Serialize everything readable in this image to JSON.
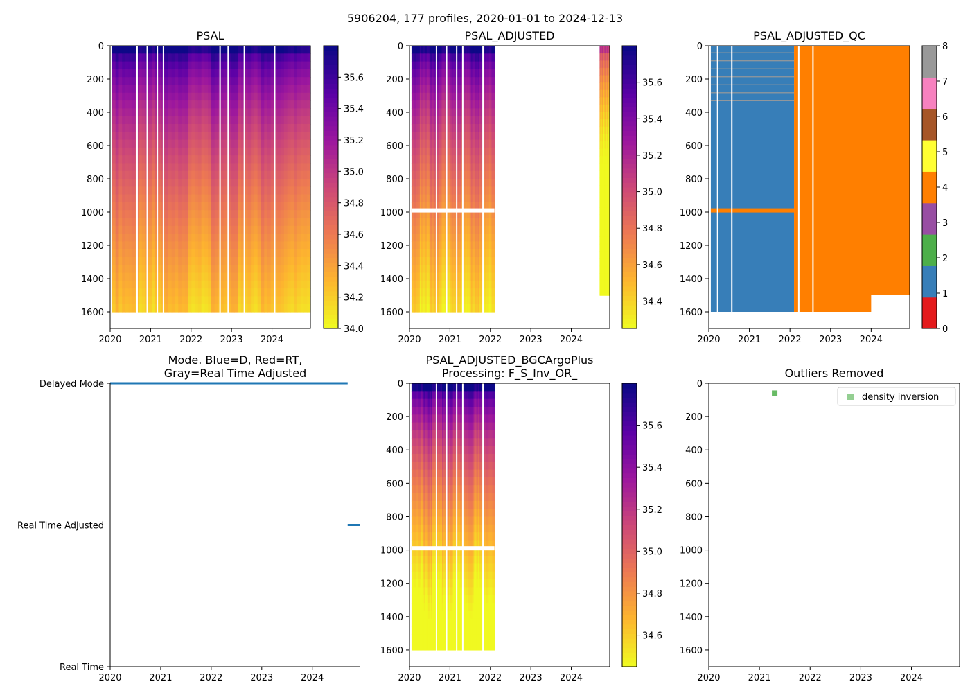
{
  "suptitle": "5906204, 177 profiles, 2020-01-01 to 2024-12-13",
  "colors": {
    "qc": [
      "#e41a1c",
      "#377eb8",
      "#4daf4a",
      "#984ea3",
      "#ff7f00",
      "#ffff33",
      "#a65628",
      "#f781bf",
      "#999999"
    ],
    "plasma": [
      "#f0f921",
      "#fdb42f",
      "#ed7953",
      "#cc4778",
      "#9c179e",
      "#5c01a6",
      "#0d0887"
    ],
    "mode_line": "#1f77b4",
    "outlier": "#4daf4a"
  },
  "chart_data": [
    {
      "id": "psal",
      "type": "heatmap",
      "title": "PSAL",
      "xlim": [
        2020,
        2024.95
      ],
      "ylim": [
        1700,
        0
      ],
      "x_ticks": [
        "2020",
        "2021",
        "2022",
        "2023",
        "2024"
      ],
      "y_ticks": [
        "0",
        "200",
        "400",
        "600",
        "800",
        "1000",
        "1200",
        "1400",
        "1600"
      ],
      "colorbar": {
        "min": 34.0,
        "max": 35.8,
        "ticks": [
          "34.0",
          "34.2",
          "34.4",
          "34.6",
          "34.8",
          "35.0",
          "35.2",
          "35.4",
          "35.6"
        ]
      },
      "data_range": [
        2020.05,
        2024.95
      ],
      "max_depth": 1600,
      "gaps": [
        2020.65,
        2020.9,
        2021.15,
        2021.3,
        2022.7,
        2022.9,
        2023.3,
        2024.05
      ]
    },
    {
      "id": "psal_adj",
      "type": "heatmap",
      "title": "PSAL_ADJUSTED",
      "xlim": [
        2020,
        2024.95
      ],
      "ylim": [
        1700,
        0
      ],
      "x_ticks": [
        "2020",
        "2021",
        "2022",
        "2023",
        "2024"
      ],
      "y_ticks": [
        "0",
        "200",
        "400",
        "600",
        "800",
        "1000",
        "1200",
        "1400",
        "1600"
      ],
      "colorbar": {
        "min": 34.25,
        "max": 35.8,
        "ticks": [
          "34.4",
          "34.6",
          "34.8",
          "35.0",
          "35.2",
          "35.4",
          "35.6"
        ]
      },
      "data_range": [
        2020.05,
        2022.1
      ],
      "data_range_2": [
        2024.7,
        2024.95
      ],
      "max_depth": 1600,
      "gap_depth": 990,
      "gaps": [
        2020.65,
        2020.9,
        2021.15,
        2021.3,
        2021.8
      ]
    },
    {
      "id": "psal_qc",
      "type": "heatmap",
      "title": "PSAL_ADJUSTED_QC",
      "xlim": [
        2020,
        2024.95
      ],
      "ylim": [
        1700,
        0
      ],
      "x_ticks": [
        "2020",
        "2021",
        "2022",
        "2023",
        "2024"
      ],
      "y_ticks": [
        "0",
        "200",
        "400",
        "600",
        "800",
        "1000",
        "1200",
        "1400",
        "1600"
      ],
      "colorbar": {
        "min": 0,
        "max": 8,
        "ticks": [
          "0",
          "1",
          "2",
          "3",
          "4",
          "5",
          "6",
          "7",
          "8"
        ]
      },
      "blue_range": [
        2020.05,
        2022.1
      ],
      "orange_range": [
        2022.1,
        2024.95
      ],
      "max_depth": 1600,
      "gaps": [
        2020.2,
        2020.55,
        2022.2,
        2022.55
      ]
    },
    {
      "id": "mode",
      "type": "line",
      "title_lines": [
        "Mode. Blue=D, Red=RT,",
        "Gray=Real Time Adjusted"
      ],
      "xlim": [
        2020,
        2024.95
      ],
      "x_ticks": [
        "2020",
        "2021",
        "2022",
        "2023",
        "2024"
      ],
      "y_labels": [
        "Delayed Mode",
        "Real Time Adjusted",
        "Real Time"
      ],
      "series": [
        {
          "name": "Delayed Mode",
          "x": [
            2020.0,
            2024.7
          ],
          "level": 2
        },
        {
          "name": "Real Time Adjusted",
          "x": [
            2024.7,
            2024.95
          ],
          "level": 1
        }
      ]
    },
    {
      "id": "bgc",
      "type": "heatmap",
      "title_lines": [
        "PSAL_ADJUSTED_BGCArgoPlus",
        "Processing: F_S_Inv_OR_"
      ],
      "xlim": [
        2020,
        2024.95
      ],
      "ylim": [
        1700,
        0
      ],
      "x_ticks": [
        "2020",
        "2021",
        "2022",
        "2023",
        "2024"
      ],
      "y_ticks": [
        "0",
        "200",
        "400",
        "600",
        "800",
        "1000",
        "1200",
        "1400",
        "1600"
      ],
      "colorbar": {
        "min": 34.45,
        "max": 35.8,
        "ticks": [
          "34.6",
          "34.8",
          "35.0",
          "35.2",
          "35.4",
          "35.6"
        ]
      },
      "data_range": [
        2020.05,
        2022.1
      ],
      "max_depth": 1600,
      "gap_depth": 990,
      "gaps": [
        2020.65,
        2020.9,
        2021.15,
        2021.3,
        2021.8
      ]
    },
    {
      "id": "outliers",
      "type": "scatter",
      "title": "Outliers Removed",
      "xlim": [
        2020,
        2024.95
      ],
      "ylim": [
        1700,
        0
      ],
      "x_ticks": [
        "2020",
        "2021",
        "2022",
        "2023",
        "2024"
      ],
      "y_ticks": [
        "0",
        "200",
        "400",
        "600",
        "800",
        "1000",
        "1200",
        "1400",
        "1600"
      ],
      "points": [
        {
          "x": 2021.3,
          "y": 60,
          "label": "density inversion"
        }
      ],
      "legend": {
        "label": "density inversion",
        "placement": "top-right"
      }
    }
  ]
}
